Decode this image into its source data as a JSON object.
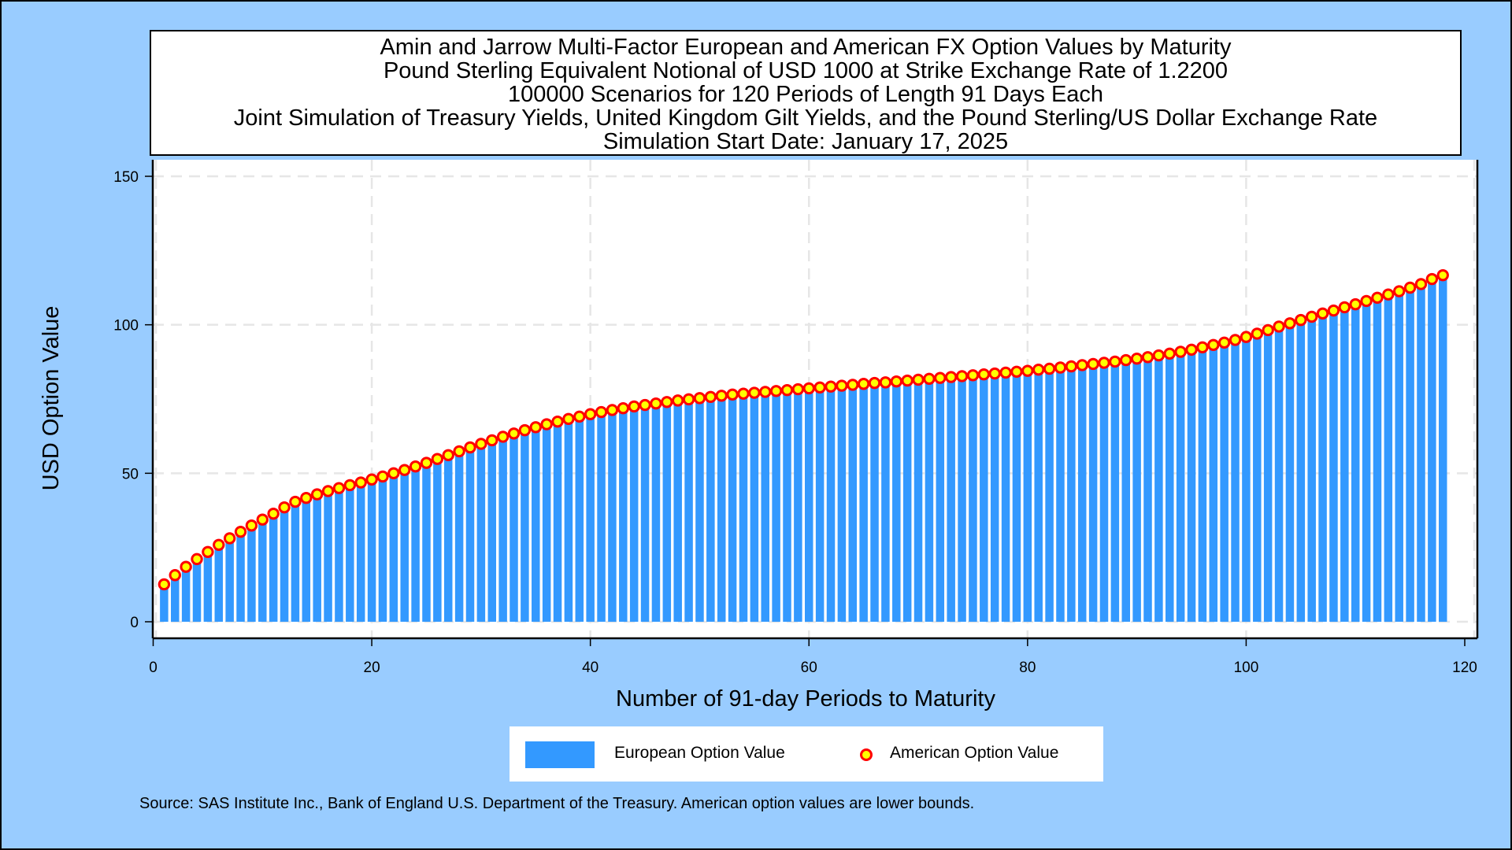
{
  "chart_data": {
    "type": "bar",
    "title_lines": [
      "Amin and Jarrow Multi-Factor European and American FX Option Values by Maturity",
      "Pound Sterling Equivalent Notional of USD 1000 at Strike Exchange Rate of  1.2200",
      "100000 Scenarios for 120 Periods of Length 91 Days Each",
      "Joint Simulation of Treasury Yields, United Kingdom Gilt Yields, and the Pound Sterling/US Dollar Exchange Rate",
      "Simulation Start Date: January 17, 2025"
    ],
    "xlabel": "Number of 91-day Periods to Maturity",
    "ylabel": "USD Option Value",
    "xlim": [
      0,
      120
    ],
    "ylim": [
      0,
      150
    ],
    "xticks": [
      0,
      20,
      40,
      60,
      80,
      100,
      120
    ],
    "yticks": [
      0,
      50,
      100,
      150
    ],
    "grid": true,
    "legend_position": "bottom",
    "colors": {
      "european": "#3399ff",
      "american_fill": "#ffff00",
      "american_edge": "#ff0000",
      "background": "#99ccff"
    },
    "x": [
      1,
      2,
      3,
      4,
      5,
      6,
      7,
      8,
      9,
      10,
      11,
      12,
      13,
      14,
      15,
      16,
      17,
      18,
      19,
      20,
      21,
      22,
      23,
      24,
      25,
      26,
      27,
      28,
      29,
      30,
      31,
      32,
      33,
      34,
      35,
      36,
      37,
      38,
      39,
      40,
      41,
      42,
      43,
      44,
      45,
      46,
      47,
      48,
      49,
      50,
      51,
      52,
      53,
      54,
      55,
      56,
      57,
      58,
      59,
      60,
      61,
      62,
      63,
      64,
      65,
      66,
      67,
      68,
      69,
      70,
      71,
      72,
      73,
      74,
      75,
      76,
      77,
      78,
      79,
      80,
      81,
      82,
      83,
      84,
      85,
      86,
      87,
      88,
      89,
      90,
      91,
      92,
      93,
      94,
      95,
      96,
      97,
      98,
      99,
      100,
      101,
      102,
      103,
      104,
      105,
      106,
      107,
      108,
      109,
      110,
      111,
      112,
      113,
      114,
      115,
      116,
      117,
      118
    ],
    "series": [
      {
        "name": "European Option Value",
        "kind": "bar",
        "values": [
          12.5,
          15.6,
          18.4,
          21.0,
          23.4,
          25.8,
          28.0,
          30.2,
          32.3,
          34.3,
          36.3,
          38.4,
          40.3,
          41.6,
          42.8,
          43.9,
          44.9,
          45.9,
          46.8,
          47.8,
          48.8,
          49.9,
          51.0,
          52.2,
          53.4,
          54.7,
          56.0,
          57.3,
          58.6,
          59.8,
          61.0,
          62.2,
          63.3,
          64.4,
          65.4,
          66.4,
          67.3,
          68.2,
          69.0,
          69.8,
          70.5,
          71.2,
          71.8,
          72.4,
          72.9,
          73.4,
          73.9,
          74.4,
          74.8,
          75.2,
          75.6,
          76.0,
          76.4,
          76.7,
          77.0,
          77.3,
          77.6,
          77.9,
          78.2,
          78.5,
          78.8,
          79.1,
          79.4,
          79.7,
          80.0,
          80.3,
          80.5,
          80.8,
          81.1,
          81.4,
          81.7,
          82.0,
          82.3,
          82.6,
          82.9,
          83.2,
          83.5,
          83.8,
          84.1,
          84.4,
          84.8,
          85.1,
          85.5,
          85.9,
          86.3,
          86.7,
          87.1,
          87.5,
          88.0,
          88.5,
          89.0,
          89.6,
          90.2,
          90.8,
          91.5,
          92.3,
          93.1,
          93.9,
          94.8,
          95.8,
          96.9,
          98.1,
          99.3,
          100.4,
          101.5,
          102.6,
          103.7,
          104.7,
          105.8,
          106.8,
          107.9,
          109.0,
          110.1,
          111.2,
          112.4,
          113.6,
          115.3,
          116.6
        ]
      },
      {
        "name": "American Option Value",
        "kind": "marker",
        "values": [
          12.6,
          15.7,
          18.5,
          21.1,
          23.5,
          25.9,
          28.1,
          30.3,
          32.4,
          34.4,
          36.4,
          38.5,
          40.4,
          41.7,
          42.9,
          44.0,
          45.0,
          46.0,
          46.9,
          47.9,
          48.9,
          50.0,
          51.1,
          52.3,
          53.5,
          54.8,
          56.1,
          57.4,
          58.7,
          59.9,
          61.1,
          62.3,
          63.4,
          64.5,
          65.5,
          66.5,
          67.4,
          68.3,
          69.1,
          69.9,
          70.6,
          71.3,
          71.9,
          72.5,
          73.0,
          73.5,
          74.0,
          74.5,
          74.9,
          75.3,
          75.7,
          76.1,
          76.5,
          76.8,
          77.1,
          77.4,
          77.7,
          78.0,
          78.3,
          78.6,
          78.9,
          79.2,
          79.5,
          79.8,
          80.1,
          80.4,
          80.6,
          80.9,
          81.2,
          81.5,
          81.8,
          82.1,
          82.4,
          82.7,
          83.0,
          83.3,
          83.6,
          83.9,
          84.2,
          84.5,
          84.9,
          85.2,
          85.6,
          86.0,
          86.4,
          86.8,
          87.2,
          87.6,
          88.1,
          88.6,
          89.1,
          89.7,
          90.3,
          90.9,
          91.6,
          92.4,
          93.2,
          94.0,
          94.9,
          95.9,
          97.0,
          98.2,
          99.4,
          100.5,
          101.6,
          102.7,
          103.8,
          104.8,
          105.9,
          106.9,
          108.0,
          109.1,
          110.2,
          111.3,
          112.5,
          113.7,
          115.4,
          116.7
        ]
      }
    ],
    "legend": {
      "european_label": "European Option Value",
      "american_label": "American Option Value"
    },
    "source_note": "Source: SAS Institute Inc., Bank of England U.S. Department of the Treasury. American option values are lower bounds."
  }
}
